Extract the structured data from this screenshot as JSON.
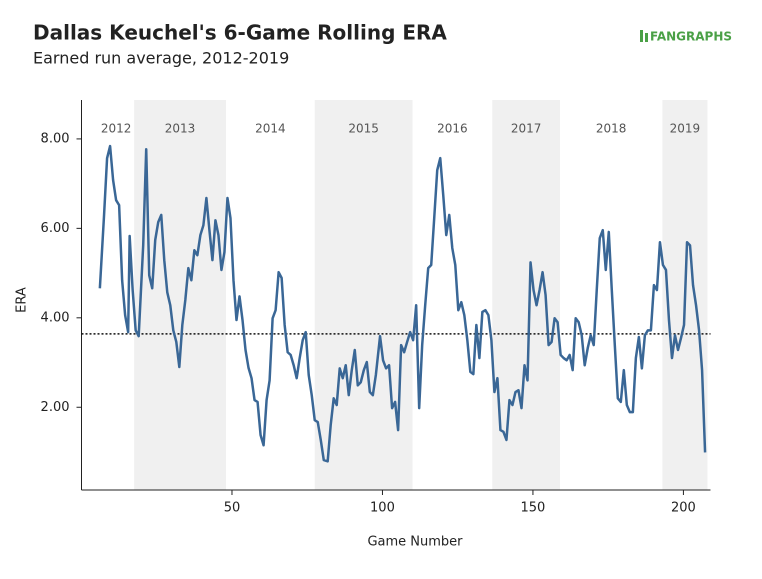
{
  "chart_data": {
    "type": "line",
    "title": "Dallas Keuchel's 6-Game Rolling ERA",
    "subtitle": "Earned run average, 2012-2019",
    "logo": "FANGRAPHS",
    "x_label": "Game Number",
    "y_label": "ERA",
    "xlim": [
      0,
      209
    ],
    "ylim": [
      0.15,
      8.87
    ],
    "xticks": [
      50,
      100,
      150,
      200
    ],
    "yticks": [
      {
        "value": 2,
        "label": "2.00"
      },
      {
        "value": 4,
        "label": "4.00"
      },
      {
        "value": 6,
        "label": "6.00"
      },
      {
        "value": 8,
        "label": "8.00"
      }
    ],
    "reference": 3.64,
    "seasons": [
      {
        "label": "2012",
        "start": 5.5,
        "end": 17.5,
        "shaded": false
      },
      {
        "label": "2013",
        "start": 17.5,
        "end": 48,
        "shaded": true
      },
      {
        "label": "2014",
        "start": 48,
        "end": 77.5,
        "shaded": false
      },
      {
        "label": "2015",
        "start": 77.5,
        "end": 110,
        "shaded": true
      },
      {
        "label": "2016",
        "start": 110,
        "end": 136.5,
        "shaded": false
      },
      {
        "label": "2017",
        "start": 136.5,
        "end": 159,
        "shaded": true
      },
      {
        "label": "2018",
        "start": 159,
        "end": 193,
        "shaded": false
      },
      {
        "label": "2019",
        "start": 193,
        "end": 208,
        "shaded": true
      }
    ],
    "x": [
      6.1,
      7.5,
      8.5,
      9.5,
      10.5,
      11.5,
      12.5,
      13.5,
      14.5,
      15.5,
      16,
      17,
      18,
      19,
      20.5,
      21.5,
      22.5,
      23.5,
      24.5,
      25.5,
      26.5,
      27.5,
      28.5,
      29.5,
      30.5,
      31.5,
      32.5,
      33.5,
      34.5,
      35.5,
      36.5,
      37.5,
      38.5,
      39.5,
      40.5,
      41.5,
      42.5,
      43.5,
      44.5,
      45.5,
      46.5,
      47.5,
      48.5,
      49.5,
      50.5,
      51.5,
      52.5,
      53.5,
      54.5,
      55.5,
      56.5,
      57.5,
      58.5,
      59.5,
      60.5,
      61.5,
      62.5,
      63.5,
      64.5,
      65.5,
      66.5,
      67.5,
      68.5,
      69.5,
      70.5,
      71.5,
      72.5,
      73.5,
      74.5,
      75.5,
      76.5,
      77.5,
      78.5,
      79.5,
      80.5,
      81.8,
      82.8,
      83.8,
      84.8,
      85.8,
      86.8,
      87.8,
      88.8,
      89.8,
      90.8,
      91.8,
      92.8,
      93.8,
      94.8,
      95.8,
      96.8,
      97.8,
      99.2,
      100.2,
      101.2,
      102.2,
      103.2,
      104.2,
      105.2,
      106.2,
      107.2,
      108.2,
      109.2,
      110.2,
      111.2,
      112.2,
      113.2,
      114.2,
      115.2,
      116.2,
      117.2,
      118.2,
      119.2,
      120.2,
      121.2,
      122.2,
      123.2,
      124.2,
      125.2,
      126.2,
      127.2,
      128.2,
      129.2,
      130.2,
      131.2,
      132.2,
      133.2,
      134.2,
      135.2,
      136.2,
      137.2,
      138.2,
      139.2,
      140.2,
      141.2,
      142.2,
      143.2,
      144.2,
      145.2,
      146.2,
      147.2,
      148.2,
      149.2,
      150.2,
      151.2,
      152.2,
      153.2,
      154.2,
      155.2,
      156.2,
      157.2,
      158.2,
      159.2,
      160.2,
      161.2,
      162.2,
      163.2,
      164.2,
      165.2,
      166.2,
      167.2,
      168.2,
      169.2,
      170.2,
      171.2,
      172.2,
      173.2,
      174.2,
      175.2,
      176.2,
      177.2,
      178.2,
      179.2,
      180.2,
      181.2,
      182.2,
      183.2,
      184.2,
      185.2,
      186.2,
      187.2,
      188.2,
      189.2,
      190.2,
      191.2,
      192.2,
      193.2,
      194.2,
      195.2,
      196.2,
      197.2,
      198.2,
      199.2,
      200.2,
      201.2,
      202.2,
      203.2,
      204.2,
      205.2,
      206.2,
      207.2
    ],
    "series": [
      {
        "name": "ERA",
        "color": "#3a6796",
        "values": [
          4.66,
          6.3,
          7.57,
          7.84,
          7.08,
          6.63,
          6.52,
          4.84,
          4.06,
          3.68,
          5.83,
          4.62,
          3.72,
          3.59,
          5.62,
          7.77,
          4.95,
          4.66,
          5.74,
          6.14,
          6.3,
          5.29,
          4.57,
          4.28,
          3.72,
          3.46,
          2.9,
          3.84,
          4.4,
          5.11,
          4.84,
          5.51,
          5.4,
          5.85,
          6.07,
          6.68,
          5.96,
          5.29,
          6.18,
          5.85,
          5.07,
          5.47,
          6.68,
          6.23,
          4.84,
          3.95,
          4.48,
          3.95,
          3.28,
          2.88,
          2.65,
          2.16,
          2.12,
          1.38,
          1.15,
          2.16,
          2.6,
          3.99,
          4.17,
          5.02,
          4.89,
          3.84,
          3.23,
          3.17,
          2.94,
          2.65,
          3.1,
          3.5,
          3.68,
          2.72,
          2.27,
          1.71,
          1.67,
          1.27,
          0.82,
          0.79,
          1.6,
          2.2,
          2.05,
          2.87,
          2.65,
          2.94,
          2.27,
          2.83,
          3.28,
          2.49,
          2.56,
          2.83,
          3.01,
          2.34,
          2.27,
          2.72,
          3.59,
          3.05,
          2.87,
          2.94,
          1.98,
          2.12,
          1.49,
          3.39,
          3.23,
          3.46,
          3.68,
          3.5,
          4.28,
          1.98,
          3.39,
          4.28,
          5.11,
          5.18,
          6.23,
          7.3,
          7.57,
          6.74,
          5.85,
          6.3,
          5.56,
          5.18,
          4.17,
          4.35,
          4.06,
          3.5,
          2.79,
          2.74,
          3.84,
          3.1,
          4.13,
          4.17,
          4.06,
          3.5,
          2.34,
          2.65,
          1.49,
          1.45,
          1.27,
          2.16,
          2.05,
          2.34,
          2.38,
          1.98,
          2.94,
          2.6,
          5.24,
          4.62,
          4.28,
          4.62,
          5.02,
          4.51,
          3.39,
          3.46,
          3.99,
          3.9,
          3.17,
          3.1,
          3.05,
          3.17,
          2.83,
          3.99,
          3.9,
          3.61,
          2.94,
          3.32,
          3.61,
          3.39,
          4.62,
          5.78,
          5.96,
          5.07,
          5.92,
          4.62,
          3.39,
          2.2,
          2.12,
          2.83,
          2.05,
          1.89,
          1.89,
          3.1,
          3.57,
          2.87,
          3.61,
          3.72,
          3.72,
          4.73,
          4.62,
          5.69,
          5.18,
          5.07,
          3.95,
          3.1,
          3.61,
          3.28,
          3.55,
          3.84,
          5.69,
          5.62,
          4.73,
          4.28,
          3.72,
          2.83,
          0.99
        ]
      }
    ]
  }
}
